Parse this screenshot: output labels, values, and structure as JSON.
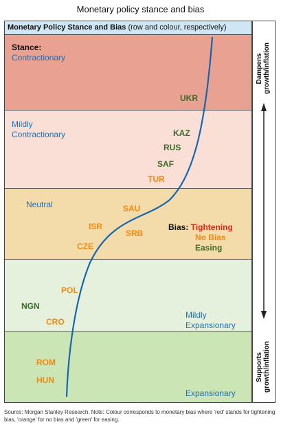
{
  "title": "Monetary policy stance and bias",
  "header": {
    "bold": "Monetary Policy Stance and Bias",
    "rest": " (row and colour, respectively)"
  },
  "stances": [
    {
      "prefix": "Stance:",
      "label": "Contractionary",
      "color": "#e9a191"
    },
    {
      "label": "Mildly Contractionary",
      "line1": "Mildly",
      "line2": "Contractionary",
      "color": "#f9dfd6"
    },
    {
      "label": "Neutral",
      "color": "#f4dcaa"
    },
    {
      "label": "Mildly Expansionary",
      "line1": "Mildly",
      "line2": "Expansionary",
      "color": "#e5f1dc"
    },
    {
      "label": "Expansionary",
      "color": "#cbe5b4"
    }
  ],
  "countries": {
    "ukr": {
      "name": "UKR",
      "bias": "Easing"
    },
    "kaz": {
      "name": "KAZ",
      "bias": "Easing"
    },
    "rus": {
      "name": "RUS",
      "bias": "Easing"
    },
    "saf": {
      "name": "SAF",
      "bias": "Easing"
    },
    "tur": {
      "name": "TUR",
      "bias": "No Bias"
    },
    "sau": {
      "name": "SAU",
      "bias": "No Bias"
    },
    "isr": {
      "name": "ISR",
      "bias": "No Bias"
    },
    "srb": {
      "name": "SRB",
      "bias": "No Bias"
    },
    "cze": {
      "name": "CZE",
      "bias": "No Bias"
    },
    "pol": {
      "name": "POL",
      "bias": "No Bias"
    },
    "ngn": {
      "name": "NGN",
      "bias": "Easing"
    },
    "cro": {
      "name": "CRO",
      "bias": "No Bias"
    },
    "rom": {
      "name": "ROM",
      "bias": "No Bias"
    },
    "hun": {
      "name": "HUN",
      "bias": "No Bias"
    }
  },
  "bias_legend": {
    "prefix": "Bias:",
    "tightening": "Tightening",
    "no_bias": "No Bias",
    "easing": "Easing",
    "colors": {
      "tightening": "#e52218",
      "no_bias": "#f08a12",
      "easing": "#3e6b2c"
    }
  },
  "side": {
    "top": [
      "Dampens",
      "growth/inflation"
    ],
    "bottom": [
      "Supports",
      "growth/inflation"
    ]
  },
  "source": "Source: Morgan Stanley Research. Note: Colour corresponds to monetary bias where 'red' stands for tightening bias, 'orange' for no bias and 'green' for easing."
}
